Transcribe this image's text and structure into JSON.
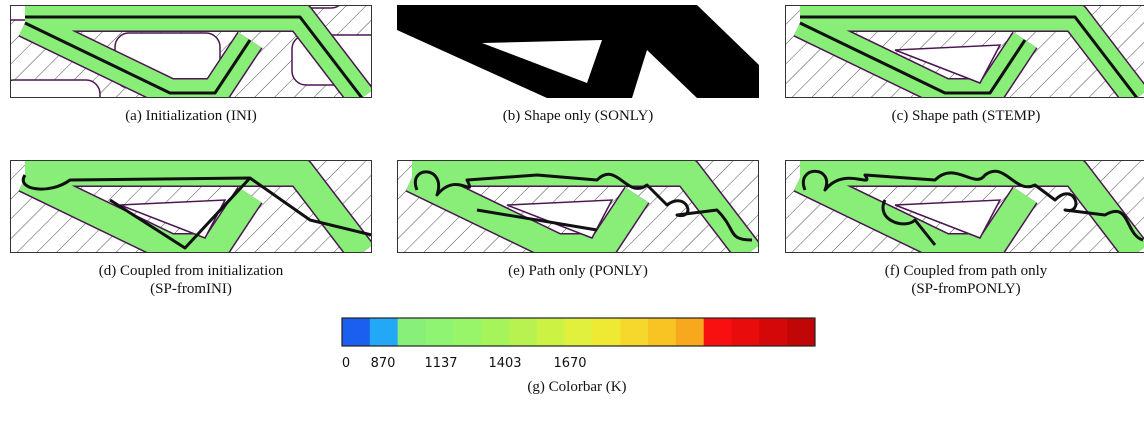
{
  "panels": [
    {
      "caption": [
        "(a) Initialization (INI)"
      ]
    },
    {
      "caption": [
        "(b) Shape only (SONLY)"
      ]
    },
    {
      "caption": [
        "(c) Shape path (STEMP)"
      ]
    },
    {
      "caption": [
        "(d) Coupled from initialization",
        "(SP-fromINI)"
      ]
    },
    {
      "caption": [
        "(e) Path only (PONLY)"
      ]
    },
    {
      "caption": [
        "(f) Coupled from path only",
        "(SP-fromPONLY)"
      ]
    }
  ],
  "colorbar": {
    "ticks": [
      0,
      870,
      1137,
      1403,
      1670
    ],
    "caption": "(g) Colorbar (K)"
  }
}
